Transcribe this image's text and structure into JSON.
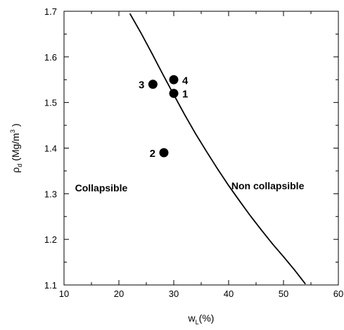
{
  "chart_data": {
    "type": "scatter",
    "title": "",
    "xlim": [
      10,
      60
    ],
    "ylim": [
      1.1,
      1.7
    ],
    "x_major_ticks": [
      10,
      20,
      30,
      40,
      50,
      60
    ],
    "y_major_ticks": [
      1.1,
      1.2,
      1.3,
      1.4,
      1.5,
      1.6,
      1.7
    ],
    "x_tick_labels": [
      "10",
      "20",
      "30",
      "40",
      "50",
      "60"
    ],
    "y_tick_labels": [
      "1.1",
      "1.2",
      "1.3",
      "1.4",
      "1.5",
      "1.6",
      "1.7"
    ],
    "xlabel": {
      "main": "w",
      "sub": "L",
      "rest": "(%)"
    },
    "ylabel": {
      "greek": "ρ",
      "sub": "d",
      "unit": " (Mg/m",
      "sup": "3",
      "close": " )"
    },
    "grid": false,
    "points": [
      {
        "label": "1",
        "x": 30.0,
        "y": 1.52,
        "label_side": "right"
      },
      {
        "label": "2",
        "x": 28.2,
        "y": 1.39,
        "label_side": "left"
      },
      {
        "label": "3",
        "x": 26.2,
        "y": 1.54,
        "label_side": "left"
      },
      {
        "label": "4",
        "x": 30.0,
        "y": 1.55,
        "label_side": "right"
      }
    ],
    "boundary_curve": {
      "x": [
        22.0,
        24.0,
        26.0,
        28.0,
        30.0,
        32.0,
        34.0,
        36.0,
        38.0,
        40.0,
        42.0,
        44.0,
        46.0,
        48.0,
        50.0,
        52.0,
        54.0
      ],
      "y": [
        1.695,
        1.653,
        1.608,
        1.562,
        1.517,
        1.473,
        1.431,
        1.392,
        1.354,
        1.318,
        1.284,
        1.251,
        1.22,
        1.19,
        1.162,
        1.133,
        1.102
      ]
    },
    "region_labels": [
      {
        "text": "Collapsible",
        "x": 12.0,
        "y": 1.305
      },
      {
        "text": "Non collapsible",
        "x": 40.5,
        "y": 1.31
      }
    ]
  }
}
